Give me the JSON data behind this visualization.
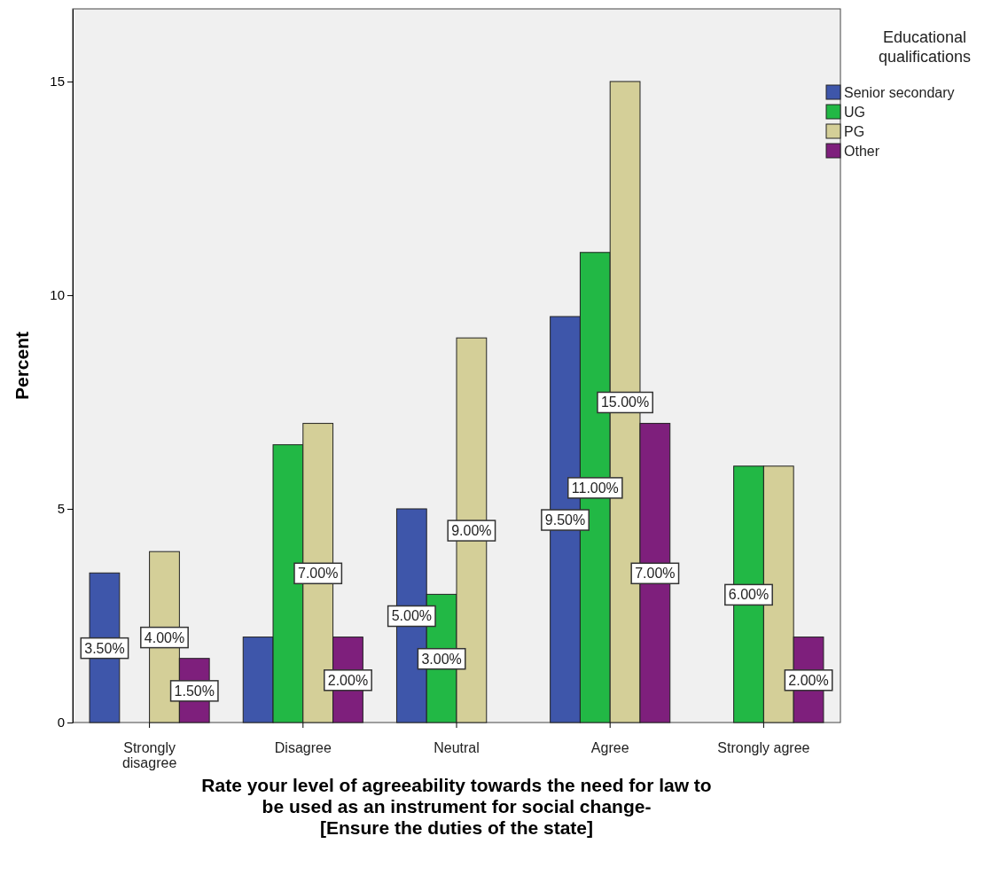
{
  "chart_data": {
    "type": "bar",
    "xlabel": "Rate your level of agreeability towards the need for law to be used as an instrument for social change-\n[Ensure the duties of the state]",
    "ylabel": "Percent",
    "legend_title": "Educational qualifications",
    "categories": [
      "Strongly disagree",
      "Disagree",
      "Neutral",
      "Agree",
      "Strongly agree"
    ],
    "series": [
      {
        "name": "Senior secondary",
        "color": "#3e56aa",
        "values": [
          3.5,
          2,
          5,
          9.5,
          null
        ],
        "value_labels": [
          "3.50%",
          null,
          "5.00%",
          "9.50%",
          null
        ]
      },
      {
        "name": "UG",
        "color": "#22b845",
        "values": [
          null,
          6.5,
          3,
          11,
          6
        ],
        "value_labels": [
          null,
          null,
          "3.00%",
          "11.00%",
          "6.00%"
        ]
      },
      {
        "name": "PG",
        "color": "#d4cf98",
        "values": [
          4,
          7,
          9,
          15,
          6
        ],
        "value_labels": [
          "4.00%",
          "7.00%",
          "9.00%",
          "15.00%",
          null
        ]
      },
      {
        "name": "Other",
        "color": "#7e1f7c",
        "values": [
          1.5,
          2,
          null,
          7,
          2
        ],
        "value_labels": [
          "1.50%",
          "2.00%",
          null,
          "7.00%",
          "2.00%"
        ]
      }
    ],
    "ylim": [
      0,
      16.7
    ],
    "yticks": [
      0,
      5,
      10,
      15
    ],
    "grid": false,
    "legend": "top right"
  }
}
